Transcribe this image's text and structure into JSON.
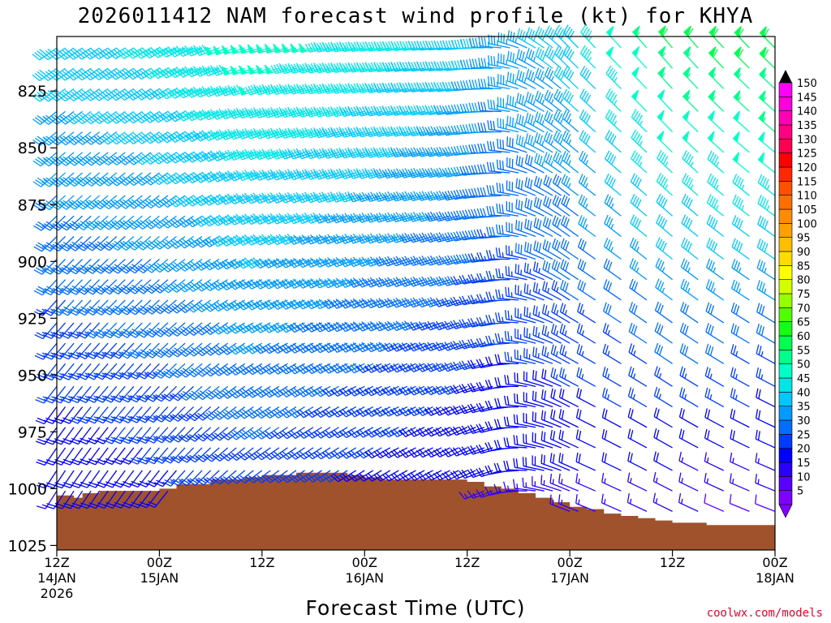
{
  "chart_data": {
    "type": "wind_barb_time_height",
    "title": "2026011412 NAM forecast wind profile (kt) for KHYA",
    "xlabel": "Forecast Time (UTC)",
    "ylabel": "",
    "credit": "coolwx.com/models",
    "x_ticks": [
      {
        "hour": 0,
        "line1": "12Z",
        "line2": "14JAN",
        "line3": "2026"
      },
      {
        "hour": 12,
        "line1": "00Z",
        "line2": "15JAN",
        "line3": ""
      },
      {
        "hour": 24,
        "line1": "12Z",
        "line2": "",
        "line3": ""
      },
      {
        "hour": 36,
        "line1": "00Z",
        "line2": "16JAN",
        "line3": ""
      },
      {
        "hour": 48,
        "line1": "12Z",
        "line2": "",
        "line3": ""
      },
      {
        "hour": 60,
        "line1": "00Z",
        "line2": "17JAN",
        "line3": ""
      },
      {
        "hour": 72,
        "line1": "12Z",
        "line2": "",
        "line3": ""
      },
      {
        "hour": 84,
        "line1": "00Z",
        "line2": "18JAN",
        "line3": ""
      }
    ],
    "xlim_hours": [
      0,
      84
    ],
    "ylim_hPa": [
      801,
      1027
    ],
    "y_ticks": [
      825,
      850,
      875,
      900,
      925,
      950,
      975,
      1000,
      1025
    ],
    "pressure_levels_hPa": [
      806,
      815,
      824,
      834,
      843,
      852,
      861,
      871,
      880,
      889,
      899,
      908,
      917,
      927,
      936,
      945,
      955,
      964,
      973,
      982,
      992,
      1001,
      1010,
      1020
    ],
    "time_steps_hours": [
      0,
      1,
      2,
      3,
      4,
      5,
      6,
      7,
      8,
      9,
      10,
      11,
      12,
      13,
      14,
      15,
      16,
      17,
      18,
      19,
      20,
      21,
      22,
      23,
      24,
      25,
      26,
      27,
      28,
      29,
      30,
      31,
      32,
      33,
      34,
      35,
      36,
      37,
      38,
      39,
      40,
      41,
      42,
      43,
      44,
      45,
      46,
      47,
      48,
      49,
      50,
      51,
      52,
      53,
      54,
      55,
      56,
      57,
      58,
      59,
      60,
      61,
      63,
      66,
      69,
      72,
      75,
      78,
      81,
      84
    ],
    "surface_pressure_hPa": [
      [
        0,
        1003
      ],
      [
        2,
        1004
      ],
      [
        3,
        1002
      ],
      [
        5,
        1001
      ],
      [
        6,
        1001
      ],
      [
        8,
        1001
      ],
      [
        10,
        1001
      ],
      [
        12,
        1000
      ],
      [
        14,
        998
      ],
      [
        16,
        998
      ],
      [
        18,
        996
      ],
      [
        20,
        996
      ],
      [
        22,
        995
      ],
      [
        24,
        994
      ],
      [
        26,
        994
      ],
      [
        28,
        993
      ],
      [
        30,
        993
      ],
      [
        32,
        993
      ],
      [
        34,
        994
      ],
      [
        36,
        995
      ],
      [
        38,
        996
      ],
      [
        40,
        996
      ],
      [
        42,
        996
      ],
      [
        44,
        996
      ],
      [
        46,
        996
      ],
      [
        48,
        997
      ],
      [
        50,
        999
      ],
      [
        52,
        1000
      ],
      [
        54,
        1002
      ],
      [
        56,
        1004
      ],
      [
        58,
        1006
      ],
      [
        60,
        1008
      ],
      [
        62,
        1009
      ],
      [
        64,
        1011
      ],
      [
        66,
        1012
      ],
      [
        68,
        1013
      ],
      [
        70,
        1014
      ],
      [
        72,
        1015
      ],
      [
        74,
        1015
      ],
      [
        76,
        1016
      ],
      [
        78,
        1016
      ],
      [
        80,
        1016
      ],
      [
        82,
        1016
      ],
      [
        84,
        1016
      ]
    ],
    "wind_model": {
      "direction_deg_by_time": [
        [
          0,
          235
        ],
        [
          12,
          240
        ],
        [
          24,
          255
        ],
        [
          36,
          260
        ],
        [
          48,
          265
        ],
        [
          52,
          275
        ],
        [
          56,
          300
        ],
        [
          60,
          315
        ],
        [
          72,
          320
        ],
        [
          84,
          315
        ]
      ],
      "speed_kt_top_by_time": [
        [
          0,
          40
        ],
        [
          12,
          43
        ],
        [
          24,
          50
        ],
        [
          36,
          46
        ],
        [
          48,
          40
        ],
        [
          52,
          35
        ],
        [
          60,
          40
        ],
        [
          72,
          58
        ],
        [
          84,
          62
        ]
      ],
      "speed_kt_bottom_by_time": [
        [
          0,
          15
        ],
        [
          24,
          22
        ],
        [
          48,
          15
        ],
        [
          60,
          15
        ],
        [
          72,
          12
        ],
        [
          84,
          8
        ]
      ]
    },
    "colorbar": {
      "levels": [
        5,
        10,
        15,
        20,
        25,
        30,
        35,
        40,
        45,
        50,
        55,
        60,
        65,
        70,
        75,
        80,
        85,
        90,
        95,
        100,
        105,
        110,
        115,
        120,
        125,
        130,
        135,
        140,
        145,
        150
      ],
      "colors": [
        "#8000ff",
        "#5a00ff",
        "#2b00ff",
        "#0000ff",
        "#003cff",
        "#006eff",
        "#009bff",
        "#00c8ff",
        "#00e6e6",
        "#00ffc8",
        "#00ff8c",
        "#00ff50",
        "#14ff14",
        "#50ff00",
        "#96ff00",
        "#d2ff00",
        "#ffff00",
        "#ffdc00",
        "#ffbe00",
        "#ffa000",
        "#ff8c00",
        "#ff6e00",
        "#ff5000",
        "#ff2800",
        "#ff0000",
        "#ff0050",
        "#ff0082",
        "#ff00b4",
        "#ff00dc",
        "#ff00ff"
      ],
      "labels": [
        "5",
        "10",
        "15",
        "20",
        "25",
        "30",
        "35",
        "40",
        "45",
        "50",
        "55",
        "60",
        "65",
        "70",
        "75",
        "80",
        "85",
        "90",
        "95",
        "100",
        "105",
        "110",
        "115",
        "120",
        "125",
        "130",
        "135",
        "140",
        "145",
        "150"
      ]
    },
    "terrain_color": "#a0522d"
  }
}
